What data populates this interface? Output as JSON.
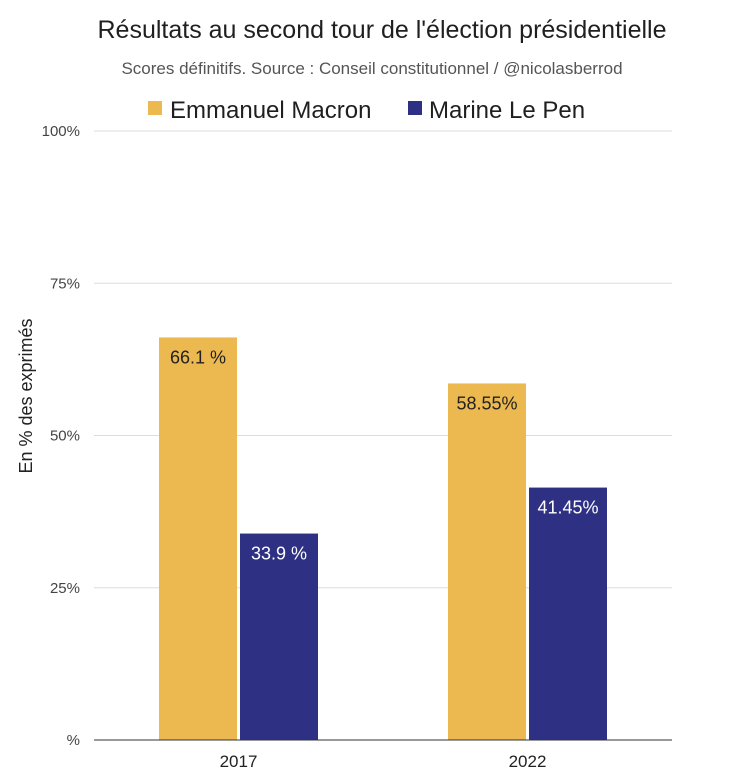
{
  "chart_data": {
    "type": "bar",
    "title": "Résultats au second tour de l'élection présidentielle",
    "subtitle": "Scores définitifs. Source : Conseil constitutionnel / @nicolasberrod",
    "xlabel": "",
    "ylabel": "En % des exprimés",
    "categories": [
      "2017",
      "2022"
    ],
    "ylim": [
      0,
      100
    ],
    "y_ticks": [
      0,
      25,
      50,
      75,
      100
    ],
    "y_tick_labels": [
      "%",
      "25%",
      "50%",
      "75%",
      "100%"
    ],
    "grid": true,
    "legend_position": "top",
    "series": [
      {
        "name": "Emmanuel Macron",
        "color": "#EBB94F",
        "label_color": "#222222",
        "values": [
          66.1,
          58.55
        ],
        "data_labels": [
          "66.1 %",
          "58.55%"
        ]
      },
      {
        "name": "Marine Le Pen",
        "color": "#2E3183",
        "label_color": "#ffffff",
        "values": [
          33.9,
          41.45
        ],
        "data_labels": [
          "33.9 %",
          "41.45%"
        ]
      }
    ]
  }
}
